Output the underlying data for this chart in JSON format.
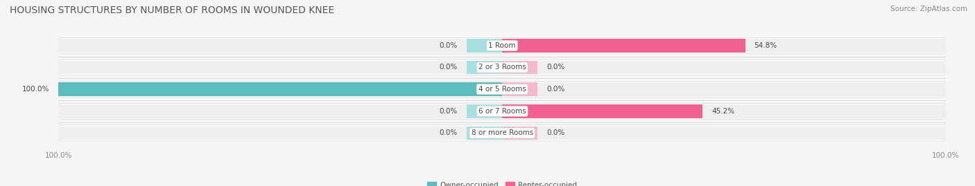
{
  "title": "HOUSING STRUCTURES BY NUMBER OF ROOMS IN WOUNDED KNEE",
  "source": "Source: ZipAtlas.com",
  "categories": [
    "1 Room",
    "2 or 3 Rooms",
    "4 or 5 Rooms",
    "6 or 7 Rooms",
    "8 or more Rooms"
  ],
  "owner_values": [
    0.0,
    0.0,
    100.0,
    0.0,
    0.0
  ],
  "renter_values": [
    54.8,
    0.0,
    0.0,
    45.2,
    0.0
  ],
  "owner_color": "#5bbcbf",
  "renter_color": "#f06090",
  "owner_color_light": "#a8dfe0",
  "renter_color_light": "#f5b8cc",
  "row_bg_color": "#efefef",
  "fig_bg_color": "#f5f5f5",
  "title_fontsize": 10,
  "label_fontsize": 7.5,
  "tick_fontsize": 7.5,
  "source_fontsize": 7.5,
  "xlim": 100,
  "legend_owner": "Owner-occupied",
  "legend_renter": "Renter-occupied",
  "stub_size": 8.0
}
